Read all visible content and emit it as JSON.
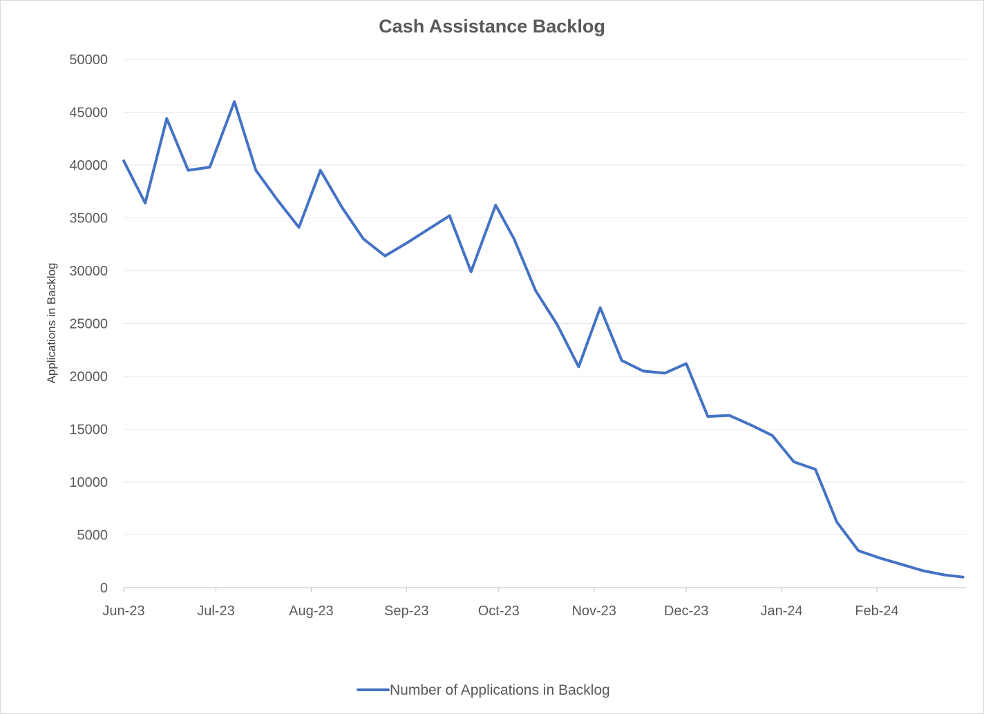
{
  "chart_data": {
    "type": "line",
    "title": "Cash Assistance Backlog",
    "xlabel": "",
    "ylabel": "Applications in Backlog",
    "ylim": [
      0,
      50000
    ],
    "y_ticks": [
      "0",
      "5000",
      "10000",
      "15000",
      "20000",
      "25000",
      "30000",
      "35000",
      "40000",
      "45000",
      "50000"
    ],
    "x_ticks": [
      "Jun-23",
      "Jul-23",
      "Aug-23",
      "Sep-23",
      "Oct-23",
      "Nov-23",
      "Dec-23",
      "Jan-24",
      "Feb-24"
    ],
    "grid": true,
    "legend_position": "bottom",
    "series": [
      {
        "name": "Number of Applications in Backlog",
        "color": "#4472c4",
        "x": [
          "2023-06-01",
          "2023-06-08",
          "2023-06-15",
          "2023-06-22",
          "2023-06-29",
          "2023-07-07",
          "2023-07-14",
          "2023-07-21",
          "2023-07-28",
          "2023-08-04",
          "2023-08-11",
          "2023-08-18",
          "2023-08-25",
          "2023-09-01",
          "2023-09-08",
          "2023-09-15",
          "2023-09-22",
          "2023-09-30",
          "2023-10-06",
          "2023-10-13",
          "2023-10-20",
          "2023-10-27",
          "2023-11-03",
          "2023-11-10",
          "2023-11-17",
          "2023-11-24",
          "2023-12-01",
          "2023-12-08",
          "2023-12-15",
          "2023-12-22",
          "2023-12-29",
          "2024-01-05",
          "2024-01-12",
          "2024-01-19",
          "2024-01-26",
          "2024-02-02",
          "2024-02-09",
          "2024-02-16",
          "2024-02-23",
          "2024-02-29"
        ],
        "values": [
          40400,
          36400,
          44400,
          39500,
          39800,
          46000,
          39500,
          36700,
          34100,
          39500,
          36000,
          33000,
          31400,
          32600,
          33900,
          35200,
          29900,
          36200,
          33000,
          28100,
          24900,
          20900,
          26500,
          21500,
          20500,
          20300,
          21200,
          16200,
          16300,
          15400,
          14400,
          11900,
          11200,
          6200,
          3500,
          2800,
          2200,
          1600,
          1200,
          1000
        ]
      }
    ]
  }
}
